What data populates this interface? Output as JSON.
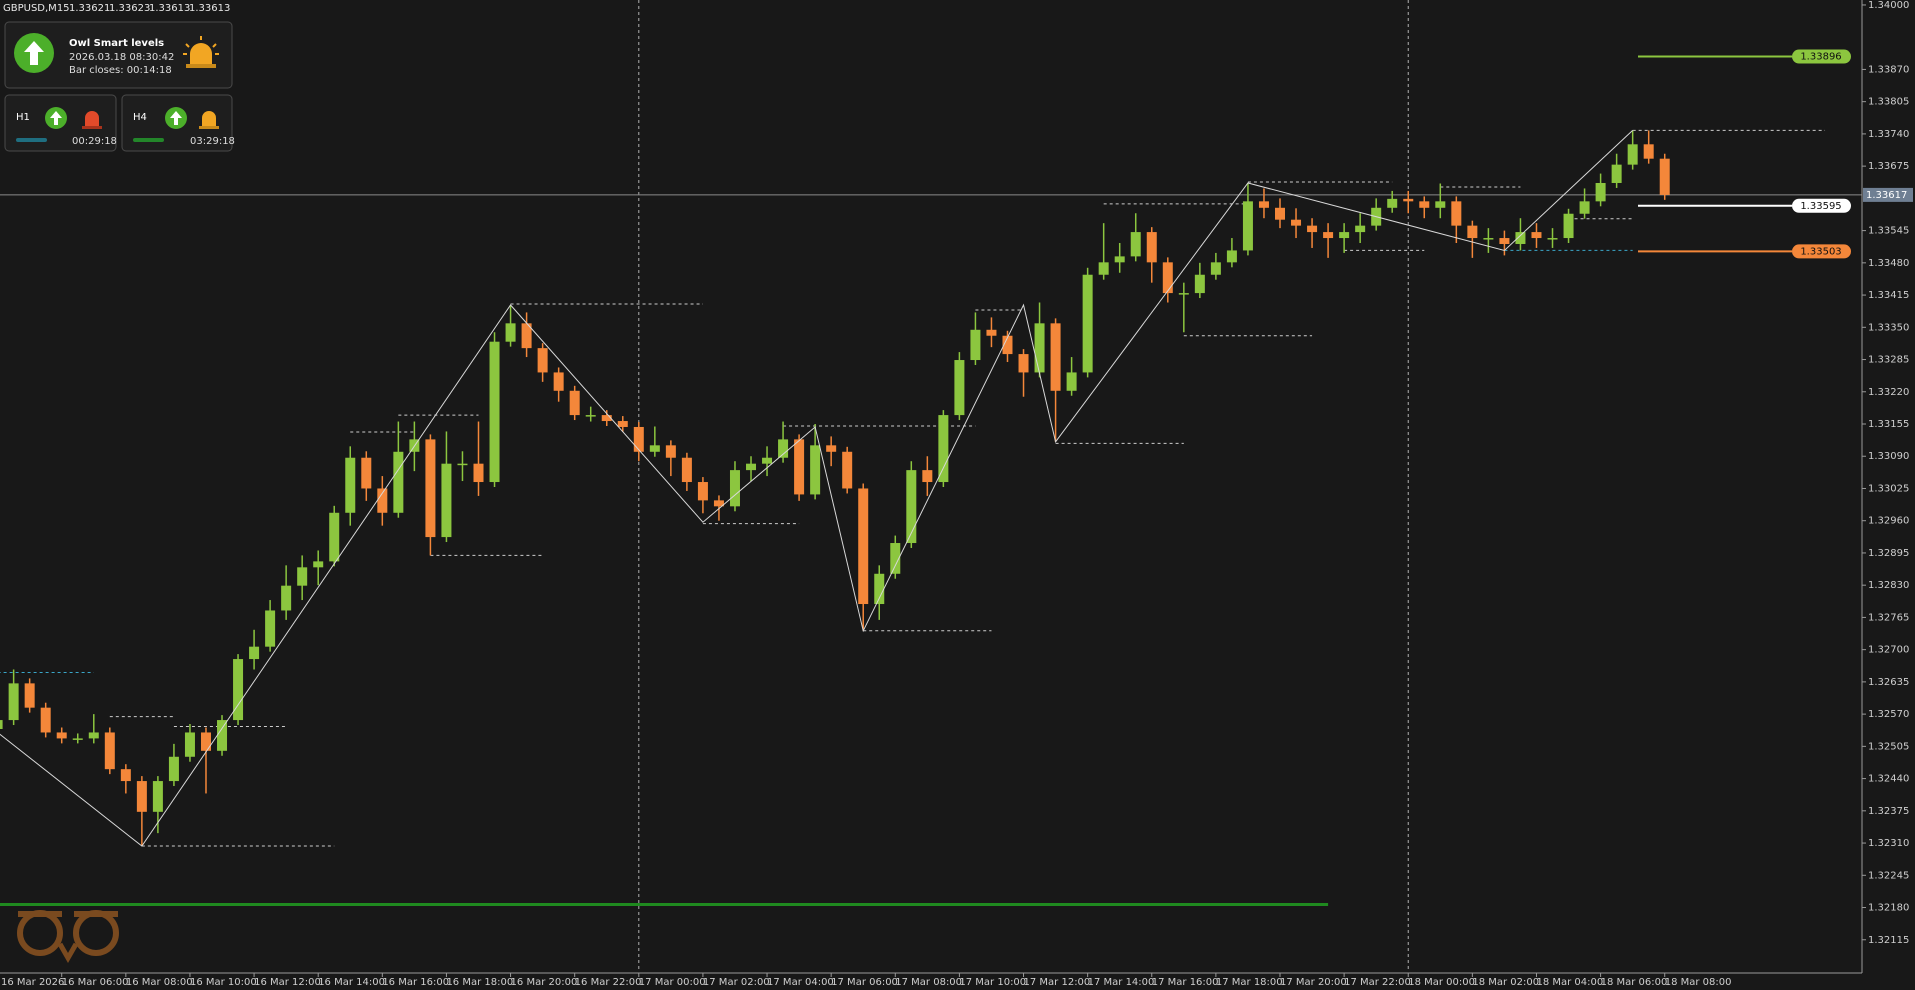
{
  "header": {
    "symbol": "GBPUSD,M15",
    "ohlc": [
      1.33621,
      1.33623,
      1.33613,
      1.33613
    ]
  },
  "panel": {
    "title": "Owl Smart levels",
    "time": "2026.03.18 08:30:42",
    "bar_closes": "Bar closes: 00:14:18",
    "timeframes": [
      {
        "label": "H1",
        "timer": "00:29:18",
        "color": "#1f6e80"
      },
      {
        "label": "H4",
        "timer": "03:29:18",
        "color": "#23862a"
      }
    ]
  },
  "chart_data": {
    "type": "candlestick",
    "bull_color": "#8cc63f",
    "bear_color": "#f4873a",
    "categories": [
      "16 Mar 2026",
      null,
      null,
      null,
      "16 Mar 06:00",
      null,
      null,
      null,
      "16 Mar 08:00",
      null,
      null,
      null,
      "16 Mar 10:00",
      null,
      null,
      null,
      "16 Mar 12:00",
      null,
      null,
      null,
      "16 Mar 14:00",
      null,
      null,
      null,
      "16 Mar 16:00",
      null,
      null,
      null,
      "16 Mar 18:00",
      null,
      null,
      null,
      "16 Mar 20:00",
      null,
      null,
      null,
      "16 Mar 22:00",
      null,
      null,
      null,
      "17 Mar 00:00",
      null,
      null,
      null,
      "17 Mar 02:00",
      null,
      null,
      null,
      "17 Mar 04:00",
      null,
      null,
      null,
      "17 Mar 06:00",
      null,
      null,
      null,
      "17 Mar 08:00",
      null,
      null,
      null,
      "17 Mar 10:00",
      null,
      null,
      null,
      "17 Mar 12:00",
      null,
      null,
      null,
      "17 Mar 14:00",
      null,
      null,
      null,
      "17 Mar 16:00",
      null,
      null,
      null,
      "17 Mar 18:00",
      null,
      null,
      null,
      "17 Mar 20:00",
      null,
      null,
      null,
      "17 Mar 22:00",
      null,
      null,
      null,
      "18 Mar 00:00",
      null,
      null,
      null,
      "18 Mar 02:00",
      null,
      null,
      null,
      "18 Mar 04:00",
      null,
      null,
      null,
      "18 Mar 06:00",
      null,
      null,
      null,
      "18 Mar 08:00"
    ],
    "open": [
      1.3254,
      1.32558,
      1.32632,
      1.32583,
      1.32533,
      1.32521,
      1.32521,
      1.32533,
      1.32459,
      1.32435,
      1.32373,
      1.32435,
      1.32484,
      1.32533,
      1.32496,
      1.32558,
      1.32681,
      1.32706,
      1.32779,
      1.32829,
      1.32866,
      1.32878,
      1.32976,
      1.33087,
      1.33025,
      1.32976,
      1.33099,
      1.33124,
      1.32927,
      1.33075,
      1.33075,
      1.33038,
      1.33321,
      1.33358,
      1.33308,
      1.33259,
      1.33222,
      1.33173,
      1.33173,
      1.33161,
      1.33149,
      1.33099,
      1.33112,
      1.33087,
      1.33038,
      1.33001,
      1.32989,
      1.33062,
      1.33075,
      1.33087,
      1.33124,
      1.33013,
      1.33112,
      1.33099,
      1.33025,
      1.32792,
      1.32853,
      1.32915,
      1.33062,
      1.33038,
      1.33173,
      1.33284,
      1.33345,
      1.33333,
      1.33296,
      1.33259,
      1.33358,
      1.33222,
      1.33259,
      1.33456,
      1.33481,
      1.33493,
      1.33542,
      1.33481,
      1.33419,
      1.33419,
      1.33456,
      1.33481,
      1.33505,
      1.33604,
      1.33591,
      1.33567,
      1.33555,
      1.33542,
      1.3353,
      1.33542,
      1.33555,
      1.33591,
      1.33609,
      1.33604,
      1.33591,
      1.33604,
      1.33555,
      1.3353,
      1.3353,
      1.33518,
      1.33542,
      1.3353,
      1.3353,
      1.33579,
      1.33604,
      1.33641,
      1.33678,
      1.33719,
      1.3369
    ],
    "high": [
      1.32568,
      1.3266,
      1.32642,
      1.32593,
      1.32543,
      1.32531,
      1.3257,
      1.32543,
      1.32469,
      1.32445,
      1.32445,
      1.3251,
      1.3255,
      1.32543,
      1.32568,
      1.32691,
      1.3274,
      1.328,
      1.3287,
      1.3289,
      1.329,
      1.3299,
      1.3311,
      1.331,
      1.3305,
      1.3316,
      1.3316,
      1.33134,
      1.3314,
      1.331,
      1.3316,
      1.3334,
      1.33395,
      1.3338,
      1.33318,
      1.33269,
      1.33232,
      1.3319,
      1.33183,
      1.33171,
      1.33159,
      1.3315,
      1.33122,
      1.33097,
      1.33048,
      1.33011,
      1.3308,
      1.3309,
      1.3311,
      1.3316,
      1.33134,
      1.33155,
      1.3313,
      1.33109,
      1.33035,
      1.3287,
      1.3293,
      1.3308,
      1.3309,
      1.33183,
      1.333,
      1.3338,
      1.3337,
      1.33343,
      1.33306,
      1.334,
      1.33368,
      1.3329,
      1.3347,
      1.3356,
      1.3352,
      1.3358,
      1.33552,
      1.33491,
      1.3344,
      1.3348,
      1.335,
      1.3353,
      1.33641,
      1.3363,
      1.3361,
      1.3359,
      1.3357,
      1.3356,
      1.3356,
      1.3358,
      1.3361,
      1.33625,
      1.33625,
      1.33614,
      1.3364,
      1.33614,
      1.33565,
      1.3355,
      1.33545,
      1.3357,
      1.3356,
      1.3355,
      1.33589,
      1.3363,
      1.3366,
      1.337,
      1.33747,
      1.33747,
      1.337
    ],
    "low": [
      1.3253,
      1.32548,
      1.32573,
      1.32523,
      1.32511,
      1.32511,
      1.32511,
      1.32449,
      1.3241,
      1.32304,
      1.3233,
      1.32425,
      1.32474,
      1.3241,
      1.32486,
      1.32548,
      1.3266,
      1.32696,
      1.3276,
      1.328,
      1.3283,
      1.32868,
      1.3295,
      1.33,
      1.3295,
      1.32966,
      1.3306,
      1.3289,
      1.32917,
      1.3304,
      1.3301,
      1.33028,
      1.33311,
      1.3329,
      1.3324,
      1.332,
      1.33163,
      1.3316,
      1.33151,
      1.33139,
      1.3308,
      1.33089,
      1.3305,
      1.3302,
      1.32975,
      1.3296,
      1.32979,
      1.3304,
      1.3305,
      1.33077,
      1.33,
      1.33003,
      1.3307,
      1.33015,
      1.32738,
      1.3276,
      1.32843,
      1.32905,
      1.3301,
      1.33028,
      1.33163,
      1.33274,
      1.3331,
      1.3328,
      1.3321,
      1.33249,
      1.33119,
      1.33212,
      1.33249,
      1.33446,
      1.3346,
      1.33483,
      1.3344,
      1.334,
      1.3334,
      1.33409,
      1.33446,
      1.33471,
      1.33495,
      1.3357,
      1.3355,
      1.3353,
      1.3351,
      1.3349,
      1.335,
      1.3352,
      1.33545,
      1.33581,
      1.3358,
      1.3357,
      1.3357,
      1.3352,
      1.3349,
      1.335,
      1.33495,
      1.33505,
      1.3351,
      1.3351,
      1.3352,
      1.33569,
      1.33594,
      1.33631,
      1.33668,
      1.3368,
      1.33607
    ],
    "close": [
      1.32558,
      1.32632,
      1.32583,
      1.32533,
      1.32521,
      1.32521,
      1.32533,
      1.32459,
      1.32435,
      1.32373,
      1.32435,
      1.32484,
      1.32533,
      1.32496,
      1.32558,
      1.32681,
      1.32706,
      1.32779,
      1.32829,
      1.32866,
      1.32878,
      1.32976,
      1.33087,
      1.33025,
      1.32976,
      1.33099,
      1.33124,
      1.32927,
      1.33075,
      1.33075,
      1.33038,
      1.33321,
      1.33358,
      1.33308,
      1.33259,
      1.33222,
      1.33173,
      1.33173,
      1.33161,
      1.33149,
      1.33099,
      1.33112,
      1.33087,
      1.33038,
      1.33001,
      1.32989,
      1.33062,
      1.33075,
      1.33087,
      1.33124,
      1.33013,
      1.33112,
      1.33099,
      1.33025,
      1.32792,
      1.32853,
      1.32915,
      1.33062,
      1.33038,
      1.33173,
      1.33284,
      1.33345,
      1.33333,
      1.33296,
      1.33259,
      1.33358,
      1.33222,
      1.33259,
      1.33456,
      1.33481,
      1.33493,
      1.33542,
      1.33481,
      1.33419,
      1.33419,
      1.33456,
      1.33481,
      1.33505,
      1.33604,
      1.33591,
      1.33567,
      1.33555,
      1.33542,
      1.3353,
      1.33542,
      1.33555,
      1.33591,
      1.33609,
      1.33604,
      1.33591,
      1.33604,
      1.33555,
      1.3353,
      1.3353,
      1.33518,
      1.33542,
      1.3353,
      1.3353,
      1.33579,
      1.33604,
      1.33641,
      1.33678,
      1.33719,
      1.3369,
      1.33617
    ],
    "ylim": [
      1.32052,
      1.3401
    ],
    "yticks": [
      {
        "value": 1.34,
        "label": "1.34000"
      },
      {
        "value": 1.3387,
        "label": "1.33870"
      },
      {
        "value": 1.33805,
        "label": "1.33805"
      },
      {
        "value": 1.3374,
        "label": "1.33740"
      },
      {
        "value": 1.33675,
        "label": "1.33675"
      },
      {
        "value": 1.33545,
        "label": "1.33545"
      },
      {
        "value": 1.3348,
        "label": "1.33480"
      },
      {
        "value": 1.33415,
        "label": "1.33415"
      },
      {
        "value": 1.3335,
        "label": "1.33350"
      },
      {
        "value": 1.33285,
        "label": "1.33285"
      },
      {
        "value": 1.3322,
        "label": "1.33220"
      },
      {
        "value": 1.33155,
        "label": "1.33155"
      },
      {
        "value": 1.3309,
        "label": "1.33090"
      },
      {
        "value": 1.33025,
        "label": "1.33025"
      },
      {
        "value": 1.3296,
        "label": "1.32960"
      },
      {
        "value": 1.32895,
        "label": "1.32895"
      },
      {
        "value": 1.3283,
        "label": "1.32830"
      },
      {
        "value": 1.32765,
        "label": "1.32765"
      },
      {
        "value": 1.327,
        "label": "1.32700"
      },
      {
        "value": 1.32635,
        "label": "1.32635"
      },
      {
        "value": 1.3257,
        "label": "1.32570"
      },
      {
        "value": 1.32505,
        "label": "1.32505"
      },
      {
        "value": 1.3244,
        "label": "1.32440"
      },
      {
        "value": 1.32375,
        "label": "1.32375"
      },
      {
        "value": 1.3231,
        "label": "1.32310"
      },
      {
        "value": 1.32245,
        "label": "1.32245"
      },
      {
        "value": 1.3218,
        "label": "1.32180"
      },
      {
        "value": 1.32115,
        "label": "1.32115"
      }
    ],
    "grid": false,
    "current_price": 1.33617,
    "levels": [
      {
        "value": 1.33896,
        "color": "#8cc63f"
      },
      {
        "value": 1.33595,
        "color": "#ffffff"
      },
      {
        "value": 1.33503,
        "color": "#f4873a"
      }
    ],
    "zigzag": {
      "x": [
        0,
        9,
        32,
        44,
        51,
        54,
        64,
        66,
        78,
        94,
        102
      ],
      "values": [
        1.32533,
        1.32304,
        1.33395,
        1.32957,
        1.33149,
        1.32738,
        1.33395,
        1.33119,
        1.33641,
        1.33505,
        1.33747
      ]
    },
    "dashed_levels": [
      {
        "from": 0,
        "to": 6,
        "value": 1.32654,
        "color": "#3aa6c8"
      },
      {
        "from": 9,
        "to": 21,
        "value": 1.32304,
        "color": "#cccccc"
      },
      {
        "from": 7,
        "to": 11,
        "value": 1.32565,
        "color": "#cccccc"
      },
      {
        "from": 11,
        "to": 18,
        "value": 1.32545,
        "color": "#cccccc"
      },
      {
        "from": 22,
        "to": 26,
        "value": 1.33139,
        "color": "#cccccc"
      },
      {
        "from": 25,
        "to": 30,
        "value": 1.33173,
        "color": "#cccccc"
      },
      {
        "from": 27,
        "to": 34,
        "value": 1.3289,
        "color": "#cccccc"
      },
      {
        "from": 32,
        "to": 44,
        "value": 1.33397,
        "color": "#cccccc"
      },
      {
        "from": 44,
        "to": 50,
        "value": 1.32954,
        "color": "#cccccc"
      },
      {
        "from": 49,
        "to": 61,
        "value": 1.33151,
        "color": "#cccccc"
      },
      {
        "from": 54,
        "to": 62,
        "value": 1.32738,
        "color": "#cccccc"
      },
      {
        "from": 61,
        "to": 64,
        "value": 1.33385,
        "color": "#cccccc"
      },
      {
        "from": 66,
        "to": 74,
        "value": 1.33116,
        "color": "#cccccc"
      },
      {
        "from": 69,
        "to": 78,
        "value": 1.33599,
        "color": "#cccccc"
      },
      {
        "from": 74,
        "to": 82,
        "value": 1.33333,
        "color": "#cccccc"
      },
      {
        "from": 78,
        "to": 87,
        "value": 1.33643,
        "color": "#cccccc"
      },
      {
        "from": 84,
        "to": 89,
        "value": 1.33505,
        "color": "#cccccc"
      },
      {
        "from": 90,
        "to": 95,
        "value": 1.33633,
        "color": "#cccccc"
      },
      {
        "from": 94,
        "to": 102,
        "value": 1.33505,
        "color": "#3aa6c8"
      },
      {
        "from": 98,
        "to": 102,
        "value": 1.33569,
        "color": "#cccccc"
      },
      {
        "from": 102,
        "to": 114,
        "value": 1.33747,
        "color": "#cccccc"
      }
    ],
    "day_separators": [
      40,
      88
    ],
    "green_level": {
      "value": 1.32186,
      "to": 83,
      "color": "#1f8a1f"
    }
  }
}
